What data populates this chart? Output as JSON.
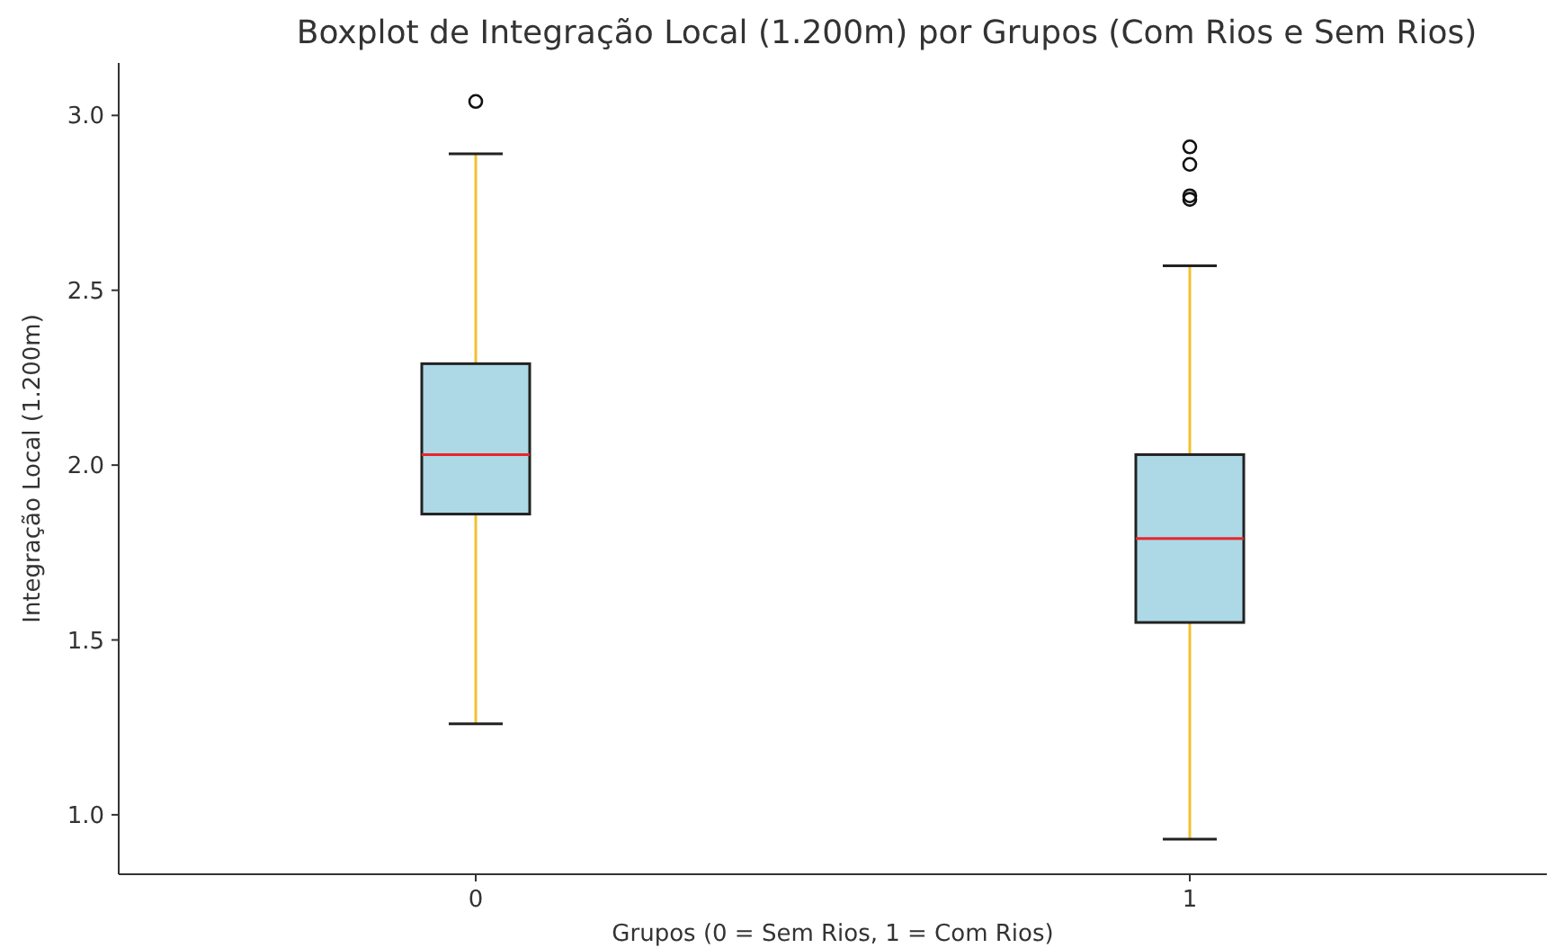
{
  "chart_data": {
    "type": "box",
    "title": "Boxplot de Integração Local (1.200m) por Grupos (Com Rios e Sem Rios)",
    "xlabel": "Grupos (0 = Sem Rios, 1 = Com Rios)",
    "ylabel": "Integração Local (1.200m)",
    "categories": [
      "0",
      "1"
    ],
    "series": [
      {
        "color": "#add8e6",
        "boxes": [
          {
            "low": 1.26,
            "q1": 1.86,
            "median": 2.03,
            "q3": 2.29,
            "high": 2.89,
            "outliers": [
              3.04
            ]
          },
          {
            "low": 0.93,
            "q1": 1.55,
            "median": 1.79,
            "q3": 2.03,
            "high": 2.57,
            "outliers": [
              2.91,
              2.86,
              2.77,
              2.76
            ]
          }
        ]
      }
    ],
    "ylim": [
      0.83,
      3.15
    ],
    "yticks": [
      {
        "value": 1,
        "label": "1.0"
      },
      {
        "value": 1.5,
        "label": "1.5"
      },
      {
        "value": 2,
        "label": "2.0"
      },
      {
        "value": 2.5,
        "label": "2.5"
      },
      {
        "value": 3,
        "label": "3.0"
      }
    ],
    "grid": false
  }
}
